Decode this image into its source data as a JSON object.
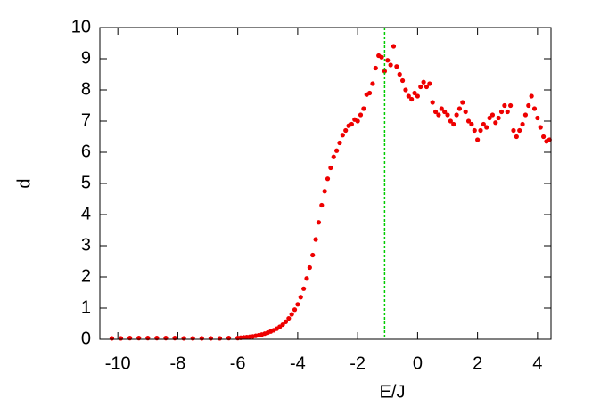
{
  "chart_data": {
    "type": "scatter",
    "xlabel": "E/J",
    "ylabel": "d",
    "xlim": [
      -10.6,
      4.45
    ],
    "ylim": [
      0,
      10
    ],
    "xticks": [
      -10,
      -8,
      -6,
      -4,
      -2,
      0,
      2,
      4
    ],
    "yticks": [
      0,
      1,
      2,
      3,
      4,
      5,
      6,
      7,
      8,
      9,
      10
    ],
    "grid": false,
    "vline": {
      "x": -1.1,
      "color": "#00cc00"
    },
    "series": [
      {
        "color": "#ee0000",
        "x": [
          -10.2,
          -9.9,
          -9.6,
          -9.3,
          -9.0,
          -8.7,
          -8.4,
          -8.1,
          -7.8,
          -7.5,
          -7.2,
          -6.9,
          -6.6,
          -6.3,
          -6.0,
          -5.9,
          -5.8,
          -5.7,
          -5.6,
          -5.5,
          -5.4,
          -5.3,
          -5.2,
          -5.1,
          -5.0,
          -4.9,
          -4.8,
          -4.7,
          -4.6,
          -4.5,
          -4.4,
          -4.3,
          -4.2,
          -4.1,
          -4.0,
          -3.9,
          -3.8,
          -3.7,
          -3.6,
          -3.5,
          -3.4,
          -3.3,
          -3.2,
          -3.1,
          -3.0,
          -2.9,
          -2.8,
          -2.7,
          -2.6,
          -2.5,
          -2.4,
          -2.3,
          -2.2,
          -2.1,
          -2.0,
          -1.9,
          -1.8,
          -1.7,
          -1.6,
          -1.5,
          -1.4,
          -1.3,
          -1.2,
          -1.1,
          -1.0,
          -0.9,
          -0.8,
          -0.7,
          -0.6,
          -0.5,
          -0.4,
          -0.3,
          -0.2,
          -0.1,
          0.0,
          0.1,
          0.2,
          0.3,
          0.4,
          0.5,
          0.6,
          0.7,
          0.8,
          0.9,
          1.0,
          1.1,
          1.2,
          1.3,
          1.4,
          1.5,
          1.6,
          1.7,
          1.8,
          1.9,
          2.0,
          2.1,
          2.2,
          2.3,
          2.4,
          2.5,
          2.6,
          2.7,
          2.8,
          2.9,
          3.0,
          3.1,
          3.2,
          3.3,
          3.4,
          3.5,
          3.6,
          3.7,
          3.8,
          3.9,
          4.0,
          4.1,
          4.2,
          4.3,
          4.4
        ],
        "values": [
          0.03,
          0.03,
          0.04,
          0.04,
          0.04,
          0.04,
          0.04,
          0.04,
          0.03,
          0.03,
          0.03,
          0.03,
          0.03,
          0.04,
          0.04,
          0.05,
          0.06,
          0.07,
          0.08,
          0.09,
          0.11,
          0.13,
          0.15,
          0.18,
          0.21,
          0.25,
          0.29,
          0.34,
          0.4,
          0.47,
          0.56,
          0.67,
          0.8,
          0.95,
          1.12,
          1.35,
          1.62,
          1.95,
          2.3,
          2.7,
          3.2,
          3.75,
          4.3,
          4.75,
          5.15,
          5.5,
          5.85,
          6.05,
          6.3,
          6.55,
          6.7,
          6.85,
          6.9,
          7.05,
          7.0,
          7.2,
          7.4,
          7.85,
          7.9,
          8.2,
          8.7,
          9.1,
          9.05,
          8.6,
          8.95,
          8.8,
          9.4,
          8.75,
          8.5,
          8.3,
          8.0,
          7.8,
          7.7,
          7.9,
          7.8,
          8.1,
          8.25,
          8.1,
          8.2,
          7.6,
          7.3,
          7.2,
          7.4,
          7.3,
          7.2,
          7.0,
          6.9,
          7.2,
          7.4,
          7.6,
          7.3,
          7.0,
          6.9,
          6.7,
          6.4,
          6.7,
          6.9,
          6.8,
          7.1,
          7.2,
          6.95,
          7.1,
          7.3,
          7.5,
          7.3,
          7.5,
          6.7,
          6.5,
          6.7,
          6.9,
          7.2,
          7.5,
          7.8,
          7.4,
          7.1,
          6.8,
          6.5,
          6.35,
          6.4
        ]
      }
    ]
  }
}
